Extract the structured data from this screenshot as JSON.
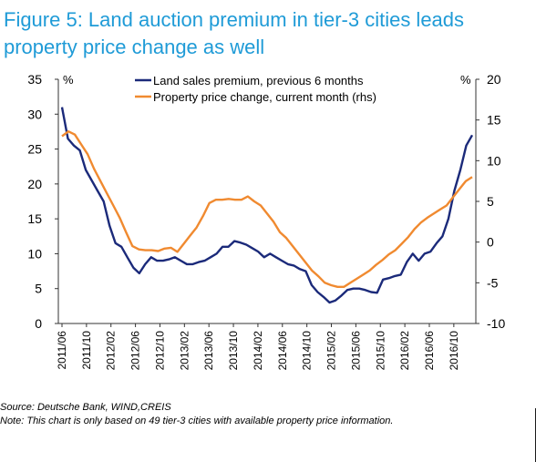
{
  "title": "Figure 5: Land auction premium in tier-3 cities leads property price change as well",
  "source": "Source: Deutsche Bank, WIND,CREIS",
  "note": "Note: This chart is only based on 49 tier-3 cities with available property price information.",
  "colors": {
    "title": "#1f9bd7",
    "land": "#1b2a7a",
    "price": "#f08a30"
  },
  "chart_data": {
    "type": "line",
    "left_axis": {
      "unit": "%",
      "ylim": [
        0,
        35
      ],
      "ticks": [
        0,
        5,
        10,
        15,
        20,
        25,
        30,
        35
      ]
    },
    "right_axis": {
      "unit": "%",
      "ylim": [
        -10,
        20
      ],
      "ticks": [
        -10,
        -5,
        0,
        5,
        10,
        15,
        20
      ]
    },
    "x_start": "2011/06",
    "x_tick_labels": [
      "2011/06",
      "2011/10",
      "2012/02",
      "2012/06",
      "2012/10",
      "2013/02",
      "2013/06",
      "2013/10",
      "2014/02",
      "2014/06",
      "2014/10",
      "2015/02",
      "2015/06",
      "2015/10",
      "2016/02",
      "2016/06",
      "2016/10"
    ],
    "legend": "top-center",
    "series": [
      {
        "name": "Land sales premium, previous 6 months",
        "axis": "left",
        "color": "#1b2a7a",
        "values": [
          31,
          26.5,
          25.5,
          24.8,
          22,
          20.5,
          19,
          17.5,
          14,
          11.5,
          11,
          9.5,
          8,
          7.2,
          8.5,
          9.5,
          9,
          9,
          9.2,
          9.5,
          9,
          8.5,
          8.5,
          8.8,
          9,
          9.5,
          10,
          11,
          11,
          11.8,
          11.6,
          11.3,
          10.8,
          10.3,
          9.5,
          10,
          9.5,
          9,
          8.5,
          8.3,
          7.8,
          7.5,
          5.5,
          4.5,
          3.8,
          3,
          3.3,
          4,
          4.8,
          5,
          5,
          4.8,
          4.5,
          4.4,
          6.3,
          6.5,
          6.8,
          7,
          8.8,
          10,
          9,
          10,
          10.3,
          11.5,
          12.5,
          15,
          19,
          22,
          25.5,
          27
        ]
      },
      {
        "name": "Property price change, current month (rhs)",
        "axis": "right",
        "color": "#f08a30",
        "values": [
          13,
          13.6,
          13.2,
          12,
          10.8,
          9,
          7.5,
          6,
          4.5,
          3,
          1.2,
          -0.5,
          -0.9,
          -1,
          -1,
          -1.1,
          -0.8,
          -0.7,
          -1.2,
          -0.2,
          0.8,
          1.8,
          3.2,
          4.8,
          5.2,
          5.2,
          5.3,
          5.2,
          5.2,
          5.6,
          5,
          4.5,
          3.5,
          2.5,
          1.2,
          0.5,
          -0.5,
          -1.5,
          -2.5,
          -3.5,
          -4.2,
          -5,
          -5.3,
          -5.5,
          -5.5,
          -5,
          -4.5,
          -4,
          -3.5,
          -2.8,
          -2.2,
          -1.5,
          -1,
          -0.2,
          0.6,
          1.6,
          2.4,
          3,
          3.5,
          4,
          4.5,
          5.5,
          6.5,
          7.5,
          8
        ]
      }
    ]
  }
}
